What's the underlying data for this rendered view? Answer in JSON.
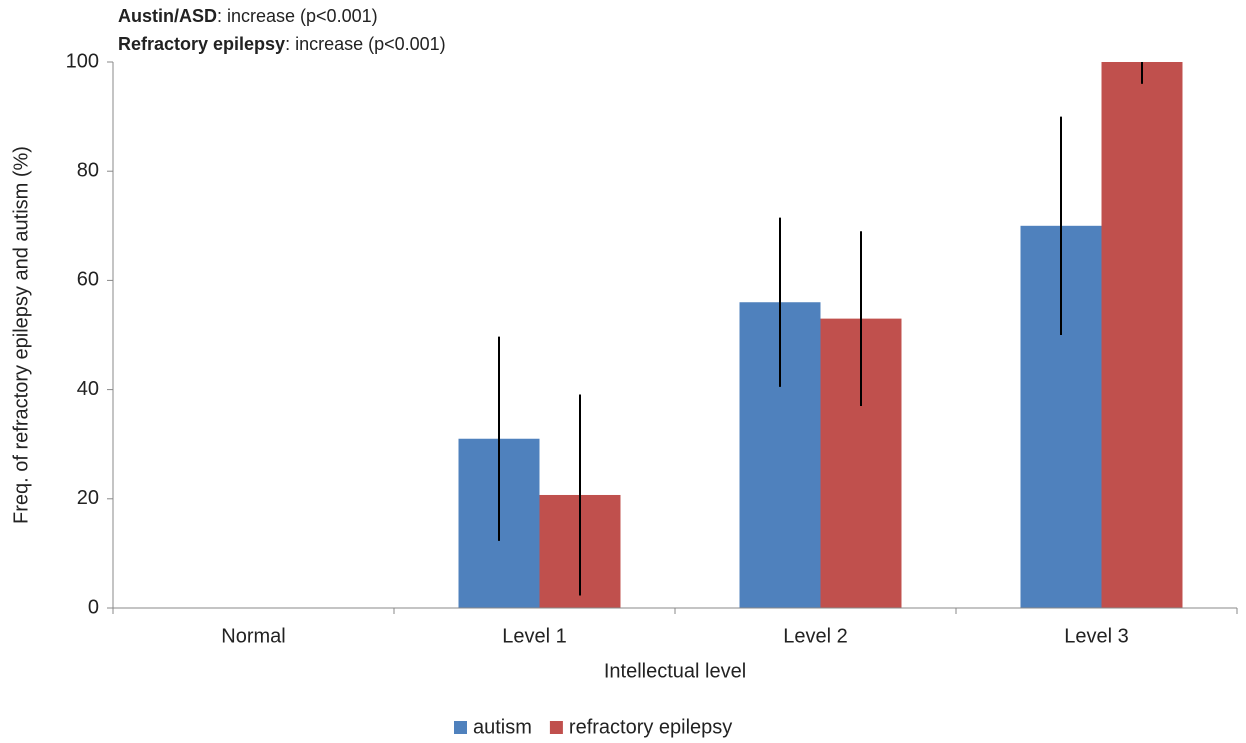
{
  "chart_data": {
    "type": "bar",
    "annotations": [
      {
        "bold": "Austin/ASD",
        "text": ": increase (p<0.001)"
      },
      {
        "bold": "Refractory epilepsy",
        "text": ": increase (p<0.001)"
      }
    ],
    "x_label": "Intellectual level",
    "y_label": "Freq. of refractory epilepsy and autism (%)",
    "categories": [
      "Normal",
      "Level 1",
      "Level 2",
      "Level 3"
    ],
    "series": [
      {
        "name": "autism",
        "color": "#4f81bd",
        "values": [
          0,
          31,
          56,
          70
        ],
        "errors": [
          null,
          18.7,
          15.5,
          20
        ]
      },
      {
        "name": "refractory epilepsy",
        "color": "#c0504d",
        "values": [
          0,
          20.7,
          53,
          100
        ],
        "errors": [
          null,
          18.4,
          16,
          4
        ]
      }
    ],
    "ylim": [
      0,
      100
    ],
    "yticks": [
      0,
      20,
      40,
      60,
      80,
      100
    ],
    "legend": "bottom"
  }
}
